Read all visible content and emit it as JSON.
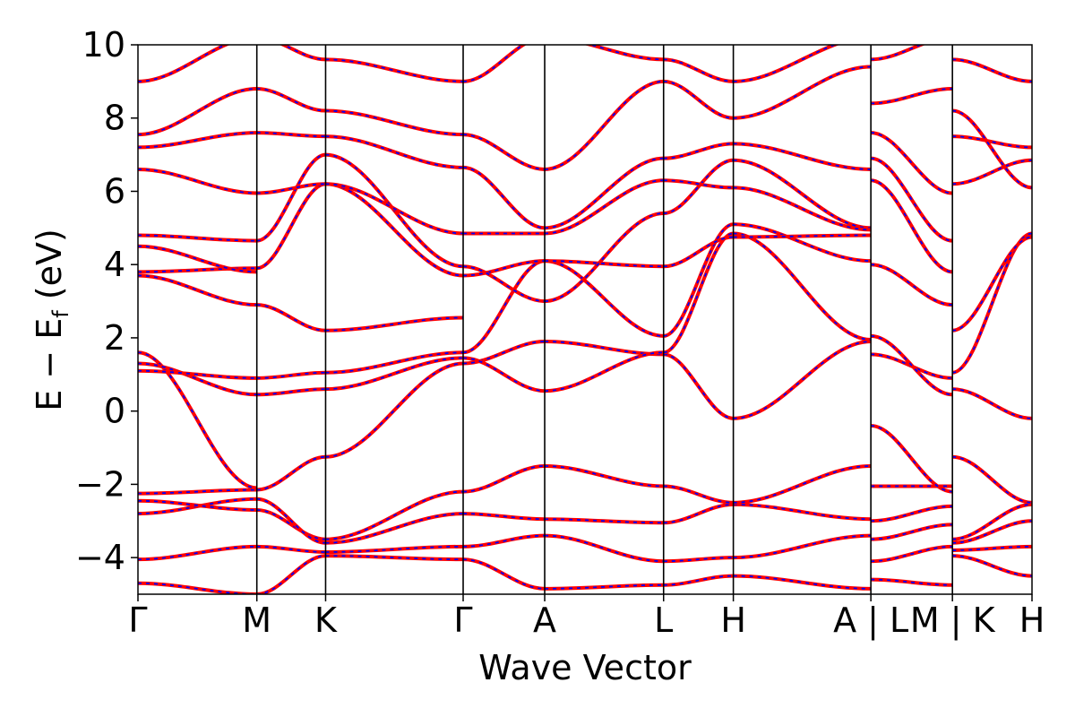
{
  "chart_data": {
    "type": "line",
    "title": "",
    "xlabel": "Wave Vector",
    "ylabel": "E − E",
    "ylabel_subscript": "f",
    "ylabel_unit": " (eV)",
    "ylim": [
      -5,
      10
    ],
    "y_ticks": [
      -4,
      -2,
      0,
      2,
      4,
      6,
      8,
      10
    ],
    "y_tick_labels": [
      "−4",
      "−2",
      "0",
      "2",
      "4",
      "6",
      "8",
      "10"
    ],
    "xlim": [
      0,
      9.1
    ],
    "k_points": [
      {
        "label": "Γ",
        "x": 0.0
      },
      {
        "label": "M",
        "x": 1.21
      },
      {
        "label": "K",
        "x": 1.91
      },
      {
        "label": "Γ",
        "x": 3.31
      },
      {
        "label": "A",
        "x": 4.14
      },
      {
        "label": "L",
        "x": 5.35
      },
      {
        "label": "H",
        "x": 6.06
      },
      {
        "label": "A | L",
        "x": 7.46
      },
      {
        "label": "M | K",
        "x": 8.29
      },
      {
        "label": "H",
        "x": 9.1
      }
    ],
    "grid": false,
    "legend": "none",
    "styles": {
      "primary_color": "#ff0000",
      "overlay_color": "#0000ff",
      "axis_color": "#000000"
    },
    "segments": [
      {
        "from": "Γ",
        "to": "M",
        "x": [
          0.0,
          1.21
        ],
        "bands": [
          [
            -4.7,
            -5.0
          ],
          [
            -4.05,
            -3.7
          ],
          [
            -2.8,
            -2.4
          ],
          [
            -2.45,
            -2.7
          ],
          [
            -2.25,
            -2.15
          ],
          [
            1.6,
            -2.1
          ],
          [
            1.3,
            0.45
          ],
          [
            1.1,
            0.9
          ],
          [
            3.7,
            2.9
          ],
          [
            3.8,
            3.9
          ],
          [
            4.5,
            3.8
          ],
          [
            4.8,
            4.65
          ],
          [
            6.6,
            5.95
          ],
          [
            7.2,
            7.6
          ],
          [
            7.55,
            8.8
          ],
          [
            9.0,
            10.2
          ]
        ]
      },
      {
        "from": "M",
        "to": "K",
        "x": [
          1.21,
          1.91
        ],
        "bands": [
          [
            -5.0,
            -3.95
          ],
          [
            -3.7,
            -3.85
          ],
          [
            -2.7,
            -3.5
          ],
          [
            -2.4,
            -3.6
          ],
          [
            -2.15,
            -1.25
          ],
          [
            0.45,
            0.6
          ],
          [
            0.9,
            1.05
          ],
          [
            2.9,
            2.2
          ],
          [
            3.9,
            6.2
          ],
          [
            4.65,
            7.0
          ],
          [
            5.95,
            6.2
          ],
          [
            7.6,
            7.5
          ],
          [
            8.8,
            8.2
          ],
          [
            10.2,
            9.6
          ]
        ]
      },
      {
        "from": "K",
        "to": "Γ",
        "x": [
          1.91,
          3.31
        ],
        "bands": [
          [
            -3.95,
            -4.05
          ],
          [
            -3.85,
            -3.7
          ],
          [
            -3.6,
            -2.8
          ],
          [
            -3.5,
            -2.2
          ],
          [
            -1.25,
            1.3
          ],
          [
            0.6,
            1.45
          ],
          [
            1.05,
            1.6
          ],
          [
            2.2,
            2.55
          ],
          [
            6.2,
            3.7
          ],
          [
            7.0,
            3.95
          ],
          [
            6.2,
            4.85
          ],
          [
            7.5,
            6.65
          ],
          [
            8.2,
            7.55
          ],
          [
            9.6,
            9.0
          ]
        ]
      },
      {
        "from": "Γ",
        "to": "A",
        "x": [
          3.31,
          4.14
        ],
        "bands": [
          [
            -4.05,
            -4.85
          ],
          [
            -3.7,
            -3.4
          ],
          [
            -2.8,
            -2.95
          ],
          [
            -2.2,
            -1.5
          ],
          [
            1.3,
            1.9
          ],
          [
            1.45,
            0.55
          ],
          [
            1.6,
            4.1
          ],
          [
            3.7,
            4.1
          ],
          [
            3.95,
            3.0
          ],
          [
            4.85,
            4.85
          ],
          [
            6.65,
            5.0
          ],
          [
            7.55,
            6.6
          ],
          [
            9.0,
            10.2
          ]
        ]
      },
      {
        "from": "A",
        "to": "L",
        "x": [
          4.14,
          5.35
        ],
        "bands": [
          [
            -4.85,
            -4.75
          ],
          [
            -3.4,
            -4.1
          ],
          [
            -2.95,
            -3.05
          ],
          [
            -1.5,
            -2.05
          ],
          [
            1.9,
            1.55
          ],
          [
            0.55,
            1.6
          ],
          [
            4.1,
            2.05
          ],
          [
            4.1,
            3.95
          ],
          [
            3.0,
            5.4
          ],
          [
            4.85,
            6.3
          ],
          [
            5.0,
            6.9
          ],
          [
            6.6,
            9.0
          ],
          [
            10.2,
            9.6
          ]
        ]
      },
      {
        "from": "L",
        "to": "H",
        "x": [
          5.35,
          6.06
        ],
        "bands": [
          [
            -4.75,
            -4.5
          ],
          [
            -4.1,
            -4.0
          ],
          [
            -3.05,
            -2.55
          ],
          [
            -2.05,
            -2.5
          ],
          [
            1.55,
            -0.2
          ],
          [
            1.6,
            4.85
          ],
          [
            2.05,
            5.1
          ],
          [
            3.95,
            4.75
          ],
          [
            5.4,
            6.85
          ],
          [
            6.3,
            6.1
          ],
          [
            6.9,
            7.3
          ],
          [
            9.0,
            8.0
          ],
          [
            9.6,
            9.0
          ]
        ]
      },
      {
        "from": "H",
        "to": "A",
        "x": [
          6.06,
          7.46
        ],
        "bands": [
          [
            -4.5,
            -4.85
          ],
          [
            -4.0,
            -3.4
          ],
          [
            -2.55,
            -2.95
          ],
          [
            -2.5,
            -1.5
          ],
          [
            -0.2,
            1.9
          ],
          [
            4.85,
            1.95
          ],
          [
            5.1,
            4.1
          ],
          [
            4.75,
            4.8
          ],
          [
            6.85,
            5.0
          ],
          [
            6.1,
            4.95
          ],
          [
            7.3,
            6.6
          ],
          [
            8.0,
            9.4
          ],
          [
            9.0,
            10.2
          ]
        ]
      },
      {
        "from": "L",
        "to": "M",
        "x": [
          7.46,
          8.29
        ],
        "bands": [
          [
            -4.6,
            -4.75
          ],
          [
            -4.1,
            -3.7
          ],
          [
            -3.5,
            -3.1
          ],
          [
            -3.0,
            -2.6
          ],
          [
            -2.05,
            -2.05
          ],
          [
            -0.4,
            -2.2
          ],
          [
            1.55,
            0.9
          ],
          [
            2.05,
            0.45
          ],
          [
            4.0,
            2.9
          ],
          [
            6.3,
            3.8
          ],
          [
            6.9,
            4.65
          ],
          [
            7.6,
            5.95
          ],
          [
            8.4,
            8.8
          ],
          [
            9.6,
            10.2
          ]
        ]
      },
      {
        "from": "K",
        "to": "H",
        "x": [
          8.29,
          9.1
        ],
        "bands": [
          [
            -3.95,
            -4.5
          ],
          [
            -3.8,
            -3.7
          ],
          [
            -3.6,
            -3.0
          ],
          [
            -3.5,
            -2.55
          ],
          [
            -1.25,
            -2.5
          ],
          [
            0.6,
            -0.2
          ],
          [
            1.05,
            4.85
          ],
          [
            2.2,
            4.75
          ],
          [
            6.2,
            6.85
          ],
          [
            7.5,
            7.2
          ],
          [
            8.2,
            6.1
          ],
          [
            9.6,
            9.0
          ]
        ]
      }
    ]
  }
}
